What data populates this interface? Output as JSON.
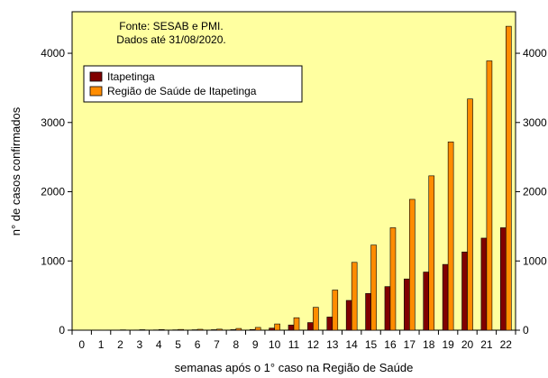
{
  "chart_data": {
    "type": "bar",
    "annotation": [
      "Fonte: SESAB e PMI.",
      "Dados até 31/08/2020."
    ],
    "xlabel": "semanas após o 1° caso na Região de Saúde",
    "ylabel": "n° de casos confirmados",
    "categories": [
      "0",
      "1",
      "2",
      "3",
      "4",
      "5",
      "6",
      "7",
      "8",
      "9",
      "10",
      "11",
      "12",
      "13",
      "14",
      "15",
      "16",
      "17",
      "18",
      "19",
      "20",
      "21",
      "22"
    ],
    "ylim": [
      0,
      4600
    ],
    "yticks": [
      0,
      1000,
      2000,
      3000,
      4000
    ],
    "grid": false,
    "legend_position": "top-left",
    "series": [
      {
        "name": "Itapetinga",
        "color": "#800000",
        "values": [
          0,
          1,
          2,
          3,
          4,
          5,
          6,
          7,
          8,
          10,
          30,
          75,
          110,
          190,
          430,
          530,
          630,
          740,
          840,
          950,
          1130,
          1330,
          1480
        ]
      },
      {
        "name": "Região de Saúde de Itapetinga",
        "color": "#FF8C00",
        "values": [
          0,
          2,
          5,
          7,
          9,
          11,
          13,
          15,
          25,
          40,
          90,
          180,
          330,
          580,
          980,
          1230,
          1480,
          1890,
          2230,
          2720,
          3340,
          3890,
          4390
        ]
      }
    ],
    "plot_background": "#FFFFA0"
  }
}
